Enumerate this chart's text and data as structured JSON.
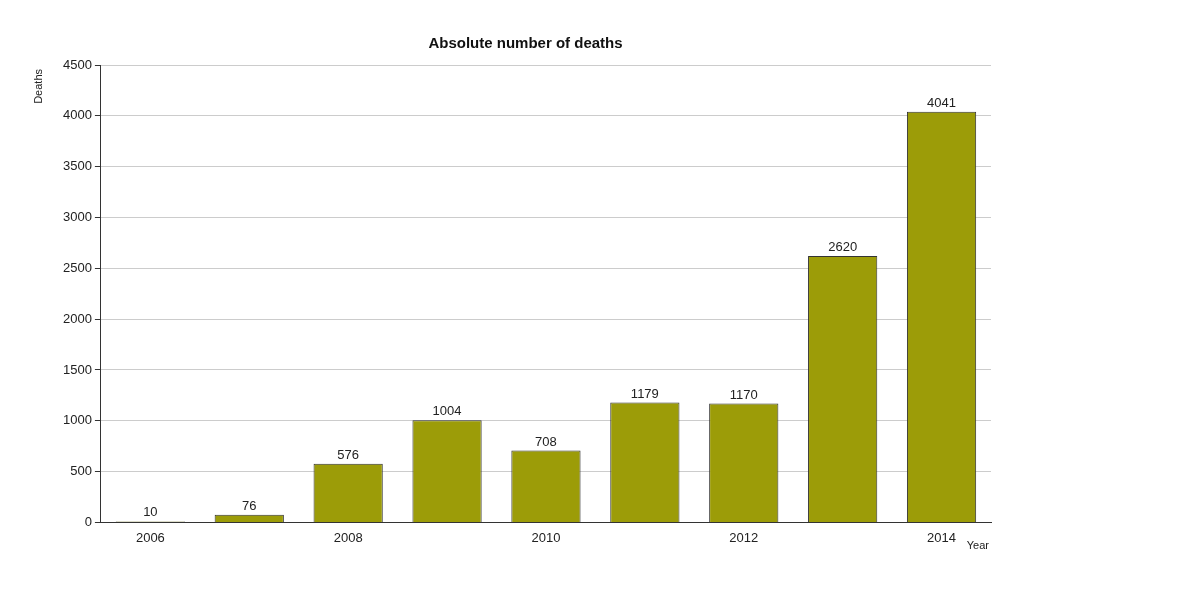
{
  "chart_data": {
    "type": "bar",
    "title": "Absolute number of deaths",
    "xlabel": "Year",
    "ylabel": "Deaths",
    "categories": [
      "2006",
      null,
      "2008",
      null,
      "2010",
      null,
      "2012",
      null,
      "2014"
    ],
    "values": [
      10,
      76,
      576,
      1004,
      708,
      1179,
      1170,
      2620,
      4041
    ],
    "color": "#9c9c08",
    "ylim": [
      0,
      4500
    ],
    "yticks": [
      0,
      500,
      1000,
      1500,
      2000,
      2500,
      3000,
      3500,
      4000,
      4500
    ],
    "grid": "y",
    "data_labels": true,
    "legend": false
  }
}
